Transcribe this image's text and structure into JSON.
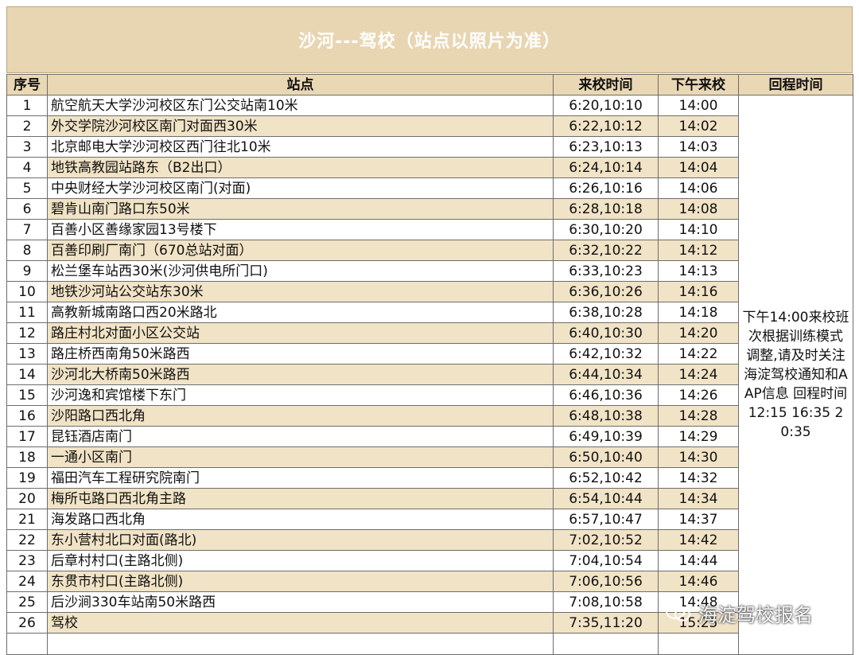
{
  "title": "沙河---驾校（站点以照片为准）",
  "headers": {
    "no": "序号",
    "stop": "站点",
    "arrive": "来校时间",
    "pm": "下午来校",
    "return": "回程时间"
  },
  "return_note": "下午14:00来校班次根据训练模式调整,请及时关注海淀驾校通知和AAP信息  回程时间12:15 16:35 20:35",
  "rows": [
    {
      "no": "1",
      "stop": "航空航天大学沙河校区东门公交站南10米",
      "arrive": "6:20,10:10",
      "pm": "14:00"
    },
    {
      "no": "2",
      "stop": "外交学院沙河校区南门对面西30米",
      "arrive": "6:22,10:12",
      "pm": "14:02"
    },
    {
      "no": "3",
      "stop": "北京邮电大学沙河校区西门往北10米",
      "arrive": "6:23,10:13",
      "pm": "14:03"
    },
    {
      "no": "4",
      "stop": "地铁高教园站路东（B2出口）",
      "arrive": "6:24,10:14",
      "pm": "14:04"
    },
    {
      "no": "5",
      "stop": "中央财经大学沙河校区南门(对面)",
      "arrive": "6:26,10:16",
      "pm": "14:06"
    },
    {
      "no": "6",
      "stop": "碧肯山南门路口东50米",
      "arrive": "6:28,10:18",
      "pm": "14:08"
    },
    {
      "no": "7",
      "stop": "百善小区善缘家园13号楼下",
      "arrive": "6:30,10:20",
      "pm": "14:10"
    },
    {
      "no": "8",
      "stop": "百善印刷厂南门（670总站对面）",
      "arrive": "6:32,10:22",
      "pm": "14:12"
    },
    {
      "no": "9",
      "stop": "松兰堡车站西30米(沙河供电所门口)",
      "arrive": "6:33,10:23",
      "pm": "14:13"
    },
    {
      "no": "10",
      "stop": "地铁沙河站公交站东30米",
      "arrive": "6:36,10:26",
      "pm": "14:16"
    },
    {
      "no": "11",
      "stop": "高教新城南路口西20米路北",
      "arrive": "6:38,10:28",
      "pm": "14:18"
    },
    {
      "no": "12",
      "stop": "路庄村北对面小区公交站",
      "arrive": "6:40,10:30",
      "pm": "14:20"
    },
    {
      "no": "13",
      "stop": "路庄桥西南角50米路西",
      "arrive": "6:42,10:32",
      "pm": "14:22"
    },
    {
      "no": "14",
      "stop": "沙河北大桥南50米路西",
      "arrive": "6:44,10:34",
      "pm": "14:24"
    },
    {
      "no": "15",
      "stop": "沙河逸和宾馆楼下东门",
      "arrive": "6:46,10:36",
      "pm": "14:26"
    },
    {
      "no": "16",
      "stop": "沙阳路口西北角",
      "arrive": "6:48,10:38",
      "pm": "14:28"
    },
    {
      "no": "17",
      "stop": "昆钰酒店南门",
      "arrive": "6:49,10:39",
      "pm": "14:29"
    },
    {
      "no": "18",
      "stop": "一通小区南门",
      "arrive": "6:50,10:40",
      "pm": "14:30"
    },
    {
      "no": "19",
      "stop": "福田汽车工程研究院南门",
      "arrive": "6:52,10:42",
      "pm": "14:32"
    },
    {
      "no": "20",
      "stop": "梅所屯路口西北角主路",
      "arrive": "6:54,10:44",
      "pm": "14:34"
    },
    {
      "no": "21",
      "stop": "海发路口西北角",
      "arrive": "6:57,10:47",
      "pm": "14:37"
    },
    {
      "no": "22",
      "stop": "东小营村北口对面(路北)",
      "arrive": "7:02,10:52",
      "pm": "14:42"
    },
    {
      "no": "23",
      "stop": "后章村村口(主路北侧)",
      "arrive": "7:04,10:54",
      "pm": "14:44"
    },
    {
      "no": "24",
      "stop": "东贯市村口(主路北侧)",
      "arrive": "7:06,10:56",
      "pm": "14:46"
    },
    {
      "no": "25",
      "stop": "后沙涧330车站南50米路西",
      "arrive": "7:08,10:58",
      "pm": "14:48"
    },
    {
      "no": "26",
      "stop": "驾校",
      "arrive": "7:35,11:20",
      "pm": "15:25"
    }
  ],
  "watermark": {
    "text": "海淀驾校报名",
    "icon": "wechat-icon"
  },
  "colors": {
    "title_bg": "#e8d6b3",
    "header_bg": "#ead7b4",
    "stripe_bg": "#f1e3c6",
    "border": "#6d6d6d"
  }
}
